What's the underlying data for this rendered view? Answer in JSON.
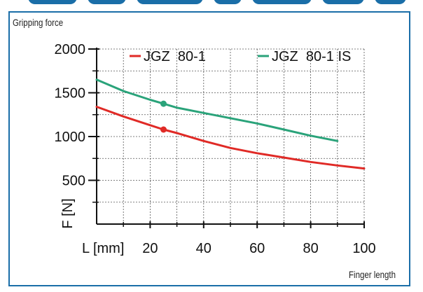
{
  "card": {
    "title": "Gripping force",
    "footer_label": "Finger length"
  },
  "colors": {
    "frame": "#1a6ea8",
    "series_red": "#e02a26",
    "series_green": "#2aa37a",
    "grid": "#555555"
  },
  "chart_data": {
    "type": "line",
    "title": "",
    "xlabel": "L [mm]",
    "ylabel": "F [N]",
    "xlim": [
      0,
      100
    ],
    "ylim": [
      0,
      2000
    ],
    "x_ticks": [
      20,
      40,
      60,
      80,
      100
    ],
    "y_ticks": [
      500,
      1000,
      1500,
      2000
    ],
    "grid": true,
    "legend_position": "top",
    "series": [
      {
        "name": "JGZ  80-1",
        "color": "#e02a26",
        "x": [
          0,
          10,
          20,
          25,
          30,
          40,
          50,
          60,
          70,
          80,
          90,
          100
        ],
        "y": [
          1340,
          1230,
          1130,
          1080,
          1040,
          950,
          870,
          810,
          760,
          710,
          670,
          635
        ],
        "markers": [
          {
            "x": 25,
            "y": 1080
          }
        ]
      },
      {
        "name": "JGZ  80-1 IS",
        "color": "#2aa37a",
        "x": [
          0,
          10,
          20,
          25,
          30,
          40,
          50,
          60,
          70,
          80,
          90
        ],
        "y": [
          1650,
          1520,
          1420,
          1375,
          1330,
          1270,
          1210,
          1150,
          1080,
          1010,
          950
        ],
        "markers": [
          {
            "x": 25,
            "y": 1375
          }
        ]
      }
    ]
  }
}
